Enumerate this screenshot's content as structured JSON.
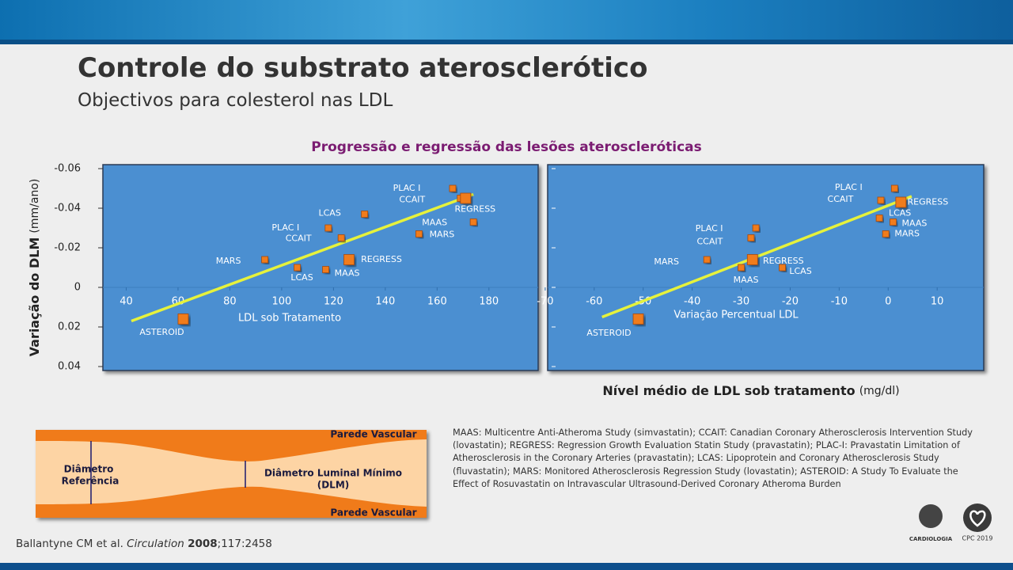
{
  "slide": {
    "title": "Controle do substrato aterosclerótico",
    "subtitle": "Objectivos para colesterol nas LDL",
    "chart_title": "Progressão e regressão das lesões ateroscleróticas",
    "y_axis_label": "Variação do DLM",
    "y_axis_unit": "(mm/ano)",
    "x_axis_label": "Nível médio de LDL sob tratamento",
    "x_axis_unit": "(mg/dl)",
    "footnote": "MAAS: Multicentre Anti-Atheroma Study (simvastatin); CCAIT: Canadian Coronary Atherosclerosis Intervention Study (lovastatin); REGRESS: Regression Growth Evaluation Statin Study (pravastatin); PLAC-I: Pravastatin Limitation of Atherosclerosis in the Coronary Arteries (pravastatin); LCAS: Lipoprotein and Coronary Atherosclerosis Study (fluvastatin); MARS: Monitored Atherosclerosis Regression Study (lovastatin); ASTEROID: A Study To Evaluate the Effect of Rosuvastatin on Intravascular Ultrasound-Derived Coronary Atheroma Burden",
    "citation": {
      "authors": "Ballantyne CM et al.",
      "journal": "Circulation",
      "year": "2008",
      "rest": ";117:2458"
    },
    "diagram": {
      "wall_top": "Parede Vascular",
      "wall_bottom": "Parede Vascular",
      "reference_1": "Diâmetro",
      "reference_2": "Referência",
      "luminal_1": "Diâmetro Luminal Mínimo",
      "luminal_2": "(DLM)"
    },
    "logos": {
      "spc": "CARDIOLOGIA",
      "cpc": "CPC 2019"
    }
  },
  "chart_data": [
    {
      "type": "scatter",
      "x_label": "LDL sob Tratamento",
      "color": "#f07b1a",
      "xlim": [
        31,
        199
      ],
      "xticks": [
        40,
        60,
        80,
        100,
        120,
        140,
        160,
        180
      ],
      "ylim": [
        -0.062,
        0.042
      ],
      "yticks": [
        -0.06,
        -0.04,
        -0.02,
        0,
        0.02,
        0.04
      ],
      "ytick_labels": true,
      "labels": [
        "PLAC I",
        "CCAIT",
        "REGRESS",
        "MAAS",
        "MARS",
        "LCAS",
        "PLAC I",
        "CCAIT",
        "MARS",
        "LCAS",
        "MAAS",
        "REGRESS",
        "ASTEROID"
      ],
      "x": [
        166,
        169,
        171,
        174,
        153,
        132,
        118,
        123,
        93.5,
        106,
        117,
        126,
        62
      ],
      "values": [
        -0.05,
        -0.045,
        -0.045,
        -0.033,
        -0.027,
        -0.037,
        -0.03,
        -0.025,
        -0.014,
        -0.01,
        -0.009,
        -0.014,
        0.016
      ],
      "trend": {
        "color": "#e6f23c",
        "x": [
          42,
          174
        ],
        "values": [
          0.017,
          -0.047
        ]
      }
    },
    {
      "type": "scatter",
      "x_label": "Variação Percentual LDL",
      "color": "#f07b1a",
      "xlim": [
        -69.5,
        19.5
      ],
      "xticks": [
        -70,
        -60,
        -50,
        -40,
        -30,
        -20,
        -10,
        0,
        10
      ],
      "ylim": [
        -0.062,
        0.042
      ],
      "yticks": [
        -0.06,
        -0.04,
        -0.02,
        0,
        0.02,
        0.04
      ],
      "ytick_labels": false,
      "labels": [
        "PLAC I",
        "CCAIT",
        "REGRESS",
        "LCAS",
        "MAAS",
        "MARS",
        "PLAC I",
        "CCAIT",
        "MARS",
        "REGRESS",
        "MAAS",
        "LCAS",
        "ASTEROID"
      ],
      "x": [
        1.3,
        -1.5,
        2.6,
        -1.8,
        1,
        -0.5,
        -27,
        -28,
        -37,
        -27.7,
        -30,
        -21.6,
        -51
      ],
      "values": [
        -0.05,
        -0.044,
        -0.043,
        -0.035,
        -0.033,
        -0.027,
        -0.03,
        -0.025,
        -0.014,
        -0.014,
        -0.01,
        -0.01,
        0.016
      ],
      "trend": {
        "color": "#e6f23c",
        "x": [
          -58.4,
          4.8
        ],
        "values": [
          0.015,
          -0.046
        ]
      }
    }
  ]
}
